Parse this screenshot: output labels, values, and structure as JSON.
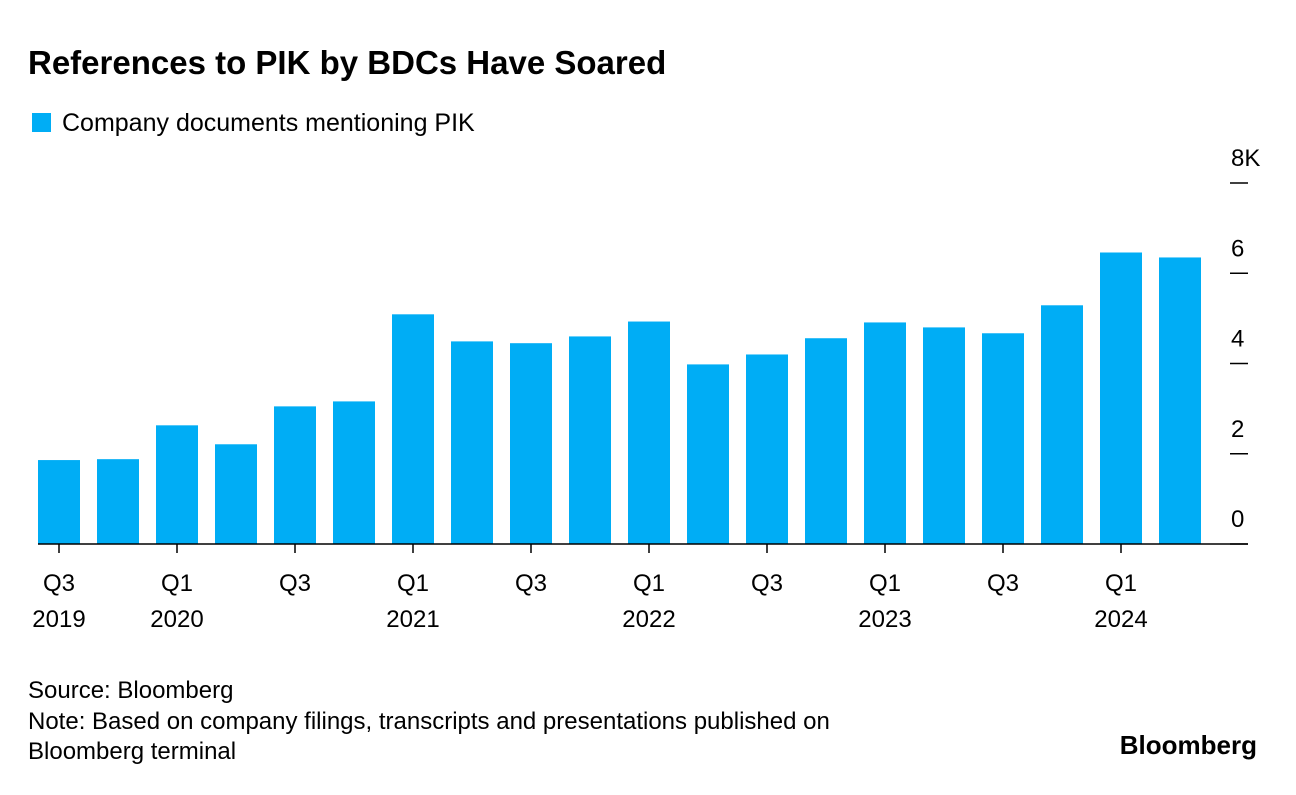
{
  "chart_data": {
    "type": "bar",
    "title": "References to PIK by BDCs Have Soared",
    "legend": "Company documents mentioning PIK",
    "color": "#00adf5",
    "categories": [
      "Q3",
      null,
      "Q1",
      null,
      "Q3",
      null,
      "Q1",
      null,
      "Q3",
      null,
      "Q1",
      null,
      "Q3",
      null,
      "Q1",
      null,
      "Q3",
      null,
      "Q1",
      null
    ],
    "category_years": [
      "2019",
      null,
      "2020",
      null,
      null,
      null,
      "2021",
      null,
      null,
      null,
      "2022",
      null,
      null,
      null,
      "2023",
      null,
      null,
      null,
      "2024",
      null
    ],
    "values": [
      1.86,
      1.88,
      2.63,
      2.21,
      3.05,
      3.16,
      5.09,
      4.49,
      4.45,
      4.6,
      4.93,
      3.98,
      4.2,
      4.56,
      4.91,
      4.8,
      4.67,
      5.29,
      6.46,
      6.35
    ],
    "ylim": [
      0,
      8
    ],
    "yticks": [
      0,
      2,
      4,
      6,
      {
        "value": 8,
        "label": "8K"
      }
    ],
    "source": "Source: Bloomberg",
    "note": [
      "Note: Based on company filings, transcripts and presentations published on",
      "Bloomberg terminal"
    ],
    "brand": "Bloomberg"
  }
}
